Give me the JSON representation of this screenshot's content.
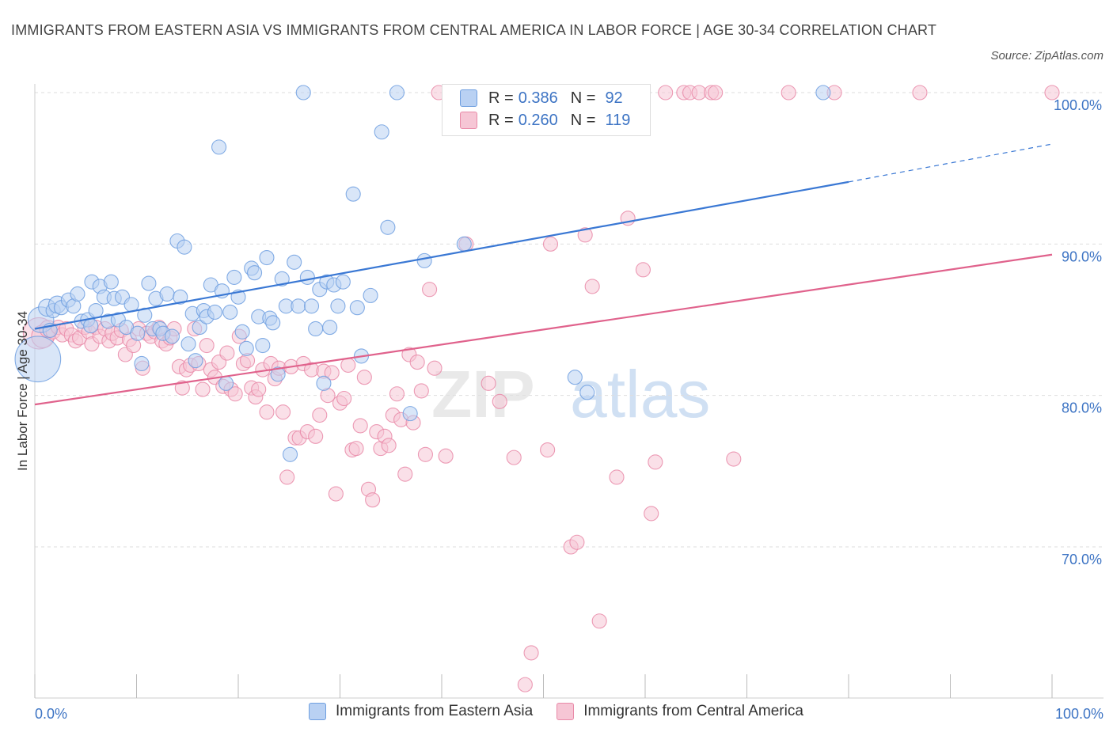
{
  "title": "IMMIGRANTS FROM EASTERN ASIA VS IMMIGRANTS FROM CENTRAL AMERICA IN LABOR FORCE | AGE 30-34 CORRELATION CHART",
  "source": "Source: ZipAtlas.com",
  "watermark": {
    "zip": "ZIP",
    "atlas": "atlas"
  },
  "legend": {
    "series1": {
      "r_label": "R =",
      "r_value": "0.386",
      "n_label": "N =",
      "n_value": "92"
    },
    "series2": {
      "r_label": "R =",
      "r_value": "0.260",
      "n_label": "N =",
      "n_value": "119"
    }
  },
  "colors": {
    "blue": "#6f9fe0",
    "blue_fill": "#b9d1f3",
    "pink": "#e98aa8",
    "pink_fill": "#f6c6d5",
    "blue_line": "#3a78d4",
    "pink_line": "#e0628c",
    "tick_text": "#3d74c4"
  },
  "chart_data": {
    "type": "scatter",
    "title": "IMMIGRANTS FROM EASTERN ASIA VS IMMIGRANTS FROM CENTRAL AMERICA IN LABOR FORCE | AGE 30-34 CORRELATION CHART",
    "xlabel": "",
    "ylabel": "In Labor Force | Age 30-34",
    "xlim": [
      0,
      100
    ],
    "ylim": [
      61,
      101
    ],
    "x_tick_labels": [
      "0.0%",
      "100.0%"
    ],
    "y_ticks": [
      70,
      80,
      90,
      100
    ],
    "y_tick_labels": [
      "70.0%",
      "80.0%",
      "90.0%",
      "100.0%"
    ],
    "grid": true,
    "legend_position": "top-center",
    "series": [
      {
        "name": "Immigrants from Eastern Asia",
        "color": "#6f9fe0",
        "trend": {
          "x0": 0,
          "y0": 84.4,
          "x1": 80,
          "y1": 94.1,
          "dashed_to_x": 100,
          "dashed_to_y": 96.6
        },
        "points": [
          [
            0.3,
            82.4,
            3.2
          ],
          [
            0.6,
            85.0,
            1.8
          ],
          [
            1.2,
            85.8,
            1.2
          ],
          [
            1.5,
            84.3,
            1.0
          ],
          [
            1.8,
            85.6,
            1.0
          ],
          [
            2.2,
            86.0,
            1.2
          ],
          [
            2.6,
            85.8,
            1.0
          ],
          [
            3.3,
            86.3,
            1.0
          ],
          [
            3.8,
            85.9,
            1.0
          ],
          [
            4.2,
            86.7,
            1.0
          ],
          [
            4.6,
            84.9,
            1.0
          ],
          [
            5.2,
            85.0,
            1.0
          ],
          [
            5.5,
            84.6,
            1.0
          ],
          [
            5.6,
            87.5,
            1.0
          ],
          [
            6.0,
            85.6,
            1.0
          ],
          [
            6.4,
            87.2,
            1.0
          ],
          [
            6.8,
            86.5,
            1.0
          ],
          [
            7.2,
            84.9,
            1.0
          ],
          [
            7.5,
            87.5,
            1.0
          ],
          [
            7.8,
            86.4,
            1.0
          ],
          [
            8.2,
            85.0,
            1.0
          ],
          [
            8.6,
            86.5,
            1.0
          ],
          [
            9.0,
            84.5,
            1.0
          ],
          [
            9.5,
            86.0,
            1.0
          ],
          [
            10.1,
            84.1,
            1.0
          ],
          [
            10.5,
            82.1,
            1.0
          ],
          [
            10.8,
            85.3,
            1.0
          ],
          [
            11.2,
            87.4,
            1.0
          ],
          [
            11.6,
            84.4,
            1.0
          ],
          [
            11.9,
            86.4,
            1.0
          ],
          [
            12.3,
            84.4,
            1.0
          ],
          [
            12.6,
            84.1,
            1.0
          ],
          [
            13.0,
            86.7,
            1.0
          ],
          [
            13.5,
            83.9,
            1.0
          ],
          [
            14.0,
            90.2,
            1.0
          ],
          [
            14.3,
            86.5,
            1.0
          ],
          [
            14.7,
            89.8,
            1.0
          ],
          [
            15.1,
            83.4,
            1.0
          ],
          [
            15.5,
            85.4,
            1.0
          ],
          [
            15.8,
            82.3,
            1.0
          ],
          [
            16.2,
            84.5,
            1.0
          ],
          [
            16.6,
            85.6,
            1.0
          ],
          [
            16.9,
            85.2,
            1.0
          ],
          [
            17.3,
            87.3,
            1.0
          ],
          [
            17.7,
            85.5,
            1.0
          ],
          [
            18.1,
            96.4,
            1.0
          ],
          [
            18.4,
            86.9,
            1.0
          ],
          [
            18.8,
            80.8,
            1.0
          ],
          [
            19.2,
            85.5,
            1.0
          ],
          [
            19.6,
            87.8,
            1.0
          ],
          [
            20.0,
            86.5,
            1.0
          ],
          [
            20.4,
            84.2,
            1.0
          ],
          [
            20.8,
            83.1,
            1.0
          ],
          [
            21.3,
            88.4,
            1.0
          ],
          [
            21.6,
            88.1,
            1.0
          ],
          [
            22.0,
            85.2,
            1.0
          ],
          [
            22.4,
            83.3,
            1.0
          ],
          [
            22.8,
            89.1,
            1.0
          ],
          [
            23.1,
            85.1,
            1.0
          ],
          [
            23.4,
            84.8,
            1.0
          ],
          [
            23.9,
            81.4,
            1.0
          ],
          [
            24.3,
            87.7,
            1.0
          ],
          [
            24.7,
            85.9,
            1.0
          ],
          [
            25.1,
            76.1,
            1.0
          ],
          [
            25.5,
            88.8,
            1.0
          ],
          [
            25.9,
            85.9,
            1.0
          ],
          [
            26.4,
            100.0,
            1.0
          ],
          [
            26.8,
            87.8,
            1.0
          ],
          [
            27.2,
            85.9,
            1.0
          ],
          [
            27.6,
            84.4,
            1.0
          ],
          [
            28.0,
            87.0,
            1.0
          ],
          [
            28.4,
            80.8,
            1.0
          ],
          [
            28.7,
            87.5,
            1.0
          ],
          [
            29.0,
            84.5,
            1.0
          ],
          [
            29.4,
            87.3,
            1.0
          ],
          [
            29.8,
            85.9,
            1.0
          ],
          [
            30.3,
            87.5,
            1.0
          ],
          [
            31.3,
            93.3,
            1.0
          ],
          [
            31.7,
            85.8,
            1.0
          ],
          [
            32.1,
            82.6,
            1.0
          ],
          [
            33.0,
            86.6,
            1.0
          ],
          [
            34.1,
            97.4,
            1.0
          ],
          [
            34.7,
            91.1,
            1.0
          ],
          [
            35.6,
            100.0,
            1.0
          ],
          [
            36.9,
            78.8,
            1.0
          ],
          [
            38.3,
            88.9,
            1.0
          ],
          [
            42.2,
            90.0,
            1.0
          ],
          [
            48.1,
            100.0,
            1.0
          ],
          [
            50.1,
            100.0,
            1.0
          ],
          [
            53.1,
            81.2,
            1.0
          ],
          [
            54.3,
            80.2,
            1.0
          ],
          [
            77.5,
            100.0,
            1.0
          ]
        ]
      },
      {
        "name": "Immigrants from Central America",
        "color": "#e98aa8",
        "trend": {
          "x0": 0,
          "y0": 79.4,
          "x1": 100,
          "y1": 89.3
        },
        "points": [
          [
            0.4,
            84.1,
            2.2
          ],
          [
            0.8,
            83.9,
            1.6
          ],
          [
            1.3,
            84.4,
            1.2
          ],
          [
            1.8,
            84.2,
            1.0
          ],
          [
            2.3,
            84.5,
            1.0
          ],
          [
            2.7,
            84.0,
            1.0
          ],
          [
            3.1,
            84.4,
            1.0
          ],
          [
            3.6,
            84.0,
            1.0
          ],
          [
            4.0,
            83.6,
            1.0
          ],
          [
            4.4,
            83.8,
            1.0
          ],
          [
            4.9,
            84.5,
            1.0
          ],
          [
            5.3,
            84.2,
            1.0
          ],
          [
            5.6,
            83.4,
            1.0
          ],
          [
            6.0,
            84.5,
            1.0
          ],
          [
            6.4,
            83.9,
            1.0
          ],
          [
            6.9,
            84.4,
            1.0
          ],
          [
            7.3,
            83.6,
            1.0
          ],
          [
            7.6,
            84.1,
            1.0
          ],
          [
            8.1,
            83.8,
            1.0
          ],
          [
            8.5,
            84.3,
            1.0
          ],
          [
            8.9,
            82.7,
            1.0
          ],
          [
            9.3,
            83.7,
            1.0
          ],
          [
            9.7,
            83.3,
            1.0
          ],
          [
            10.2,
            84.4,
            1.0
          ],
          [
            10.6,
            81.8,
            1.0
          ],
          [
            11.0,
            84.1,
            1.0
          ],
          [
            11.4,
            83.9,
            1.0
          ],
          [
            11.8,
            84.2,
            1.0
          ],
          [
            12.2,
            84.5,
            1.0
          ],
          [
            12.5,
            83.6,
            1.0
          ],
          [
            12.9,
            83.4,
            1.0
          ],
          [
            13.3,
            83.8,
            1.0
          ],
          [
            13.7,
            84.4,
            1.0
          ],
          [
            14.2,
            81.9,
            1.0
          ],
          [
            14.5,
            80.5,
            1.0
          ],
          [
            14.9,
            81.7,
            1.0
          ],
          [
            15.3,
            82.0,
            1.0
          ],
          [
            15.7,
            84.4,
            1.0
          ],
          [
            16.1,
            82.1,
            1.0
          ],
          [
            16.5,
            80.4,
            1.0
          ],
          [
            16.9,
            83.3,
            1.0
          ],
          [
            17.3,
            81.7,
            1.0
          ],
          [
            17.7,
            81.2,
            1.0
          ],
          [
            18.1,
            82.2,
            1.0
          ],
          [
            18.5,
            80.6,
            1.0
          ],
          [
            18.9,
            82.8,
            1.0
          ],
          [
            19.3,
            80.4,
            1.0
          ],
          [
            19.7,
            80.1,
            1.0
          ],
          [
            20.1,
            83.9,
            1.0
          ],
          [
            20.5,
            82.1,
            1.0
          ],
          [
            20.9,
            82.3,
            1.0
          ],
          [
            21.3,
            80.5,
            1.0
          ],
          [
            21.7,
            79.9,
            1.0
          ],
          [
            22.0,
            80.4,
            1.0
          ],
          [
            22.4,
            81.7,
            1.0
          ],
          [
            22.8,
            78.9,
            1.0
          ],
          [
            23.2,
            82.1,
            1.0
          ],
          [
            23.6,
            81.1,
            1.0
          ],
          [
            24.0,
            81.8,
            1.0
          ],
          [
            24.4,
            78.9,
            1.0
          ],
          [
            24.8,
            74.6,
            1.0
          ],
          [
            25.2,
            81.9,
            1.0
          ],
          [
            25.6,
            77.2,
            1.0
          ],
          [
            26.0,
            77.2,
            1.0
          ],
          [
            26.4,
            82.1,
            1.0
          ],
          [
            26.8,
            77.6,
            1.0
          ],
          [
            27.2,
            81.7,
            1.0
          ],
          [
            27.6,
            77.3,
            1.0
          ],
          [
            28.0,
            78.7,
            1.0
          ],
          [
            28.4,
            81.6,
            1.0
          ],
          [
            28.8,
            80.0,
            1.0
          ],
          [
            29.2,
            81.5,
            1.0
          ],
          [
            29.6,
            73.5,
            1.0
          ],
          [
            30.0,
            79.5,
            1.0
          ],
          [
            30.4,
            79.8,
            1.0
          ],
          [
            30.8,
            82.0,
            1.0
          ],
          [
            31.2,
            76.4,
            1.0
          ],
          [
            31.6,
            76.5,
            1.0
          ],
          [
            32.0,
            78.0,
            1.0
          ],
          [
            32.4,
            81.2,
            1.0
          ],
          [
            32.8,
            73.8,
            1.0
          ],
          [
            33.2,
            73.1,
            1.0
          ],
          [
            33.6,
            77.6,
            1.0
          ],
          [
            34.0,
            76.5,
            1.0
          ],
          [
            34.4,
            77.3,
            1.0
          ],
          [
            34.8,
            76.7,
            1.0
          ],
          [
            35.2,
            78.7,
            1.0
          ],
          [
            35.6,
            80.1,
            1.0
          ],
          [
            36.0,
            78.4,
            1.0
          ],
          [
            36.4,
            74.8,
            1.0
          ],
          [
            36.8,
            82.7,
            1.0
          ],
          [
            37.2,
            78.2,
            1.0
          ],
          [
            37.6,
            82.2,
            1.0
          ],
          [
            38.0,
            80.3,
            1.0
          ],
          [
            38.4,
            76.1,
            1.0
          ],
          [
            38.8,
            87.0,
            1.0
          ],
          [
            39.3,
            81.8,
            1.0
          ],
          [
            39.7,
            100.0,
            1.0
          ],
          [
            40.4,
            76.0,
            1.0
          ],
          [
            42.4,
            90.0,
            1.0
          ],
          [
            44.6,
            80.8,
            1.0
          ],
          [
            45.7,
            79.6,
            1.0
          ],
          [
            47.1,
            75.9,
            1.0
          ],
          [
            48.2,
            60.9,
            1.0
          ],
          [
            48.8,
            63.0,
            1.0
          ],
          [
            50.4,
            76.4,
            1.0
          ],
          [
            50.7,
            90.0,
            1.0
          ],
          [
            52.7,
            70.0,
            1.0
          ],
          [
            53.3,
            70.3,
            1.0
          ],
          [
            54.1,
            90.6,
            1.0
          ],
          [
            54.8,
            87.2,
            1.0
          ],
          [
            55.5,
            65.1,
            1.0
          ],
          [
            56.1,
            100.0,
            1.0
          ],
          [
            57.2,
            74.6,
            1.0
          ],
          [
            58.3,
            91.7,
            1.0
          ],
          [
            59.8,
            88.3,
            1.0
          ],
          [
            60.6,
            72.2,
            1.0
          ],
          [
            61.0,
            75.6,
            1.0
          ],
          [
            62.0,
            100.0,
            1.0
          ],
          [
            63.8,
            100.0,
            1.0
          ],
          [
            64.4,
            100.0,
            1.0
          ],
          [
            65.3,
            100.0,
            1.0
          ],
          [
            66.5,
            100.0,
            1.0
          ],
          [
            66.9,
            100.0,
            1.0
          ],
          [
            68.7,
            75.8,
            1.0
          ],
          [
            74.1,
            100.0,
            1.0
          ],
          [
            78.6,
            100.0,
            1.0
          ],
          [
            87.0,
            100.0,
            1.0
          ],
          [
            100.0,
            100.0,
            1.0
          ]
        ]
      }
    ]
  }
}
